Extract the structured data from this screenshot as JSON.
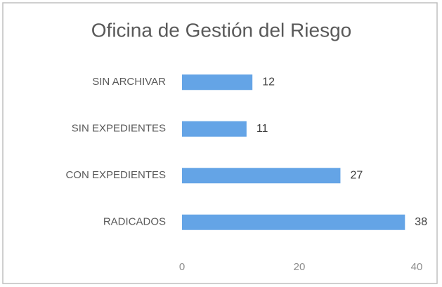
{
  "chart_data": {
    "type": "barh",
    "title": "Oficina de Gestión del Riesgo",
    "categories": [
      "SIN ARCHIVAR",
      "SIN EXPEDIENTES",
      "CON EXPEDIENTES",
      "RADICADOS"
    ],
    "values": [
      12,
      11,
      27,
      38
    ],
    "color": "#64a4e6",
    "xlim": [
      0,
      40
    ],
    "xticks": [
      0,
      20,
      40
    ],
    "grid": false
  }
}
